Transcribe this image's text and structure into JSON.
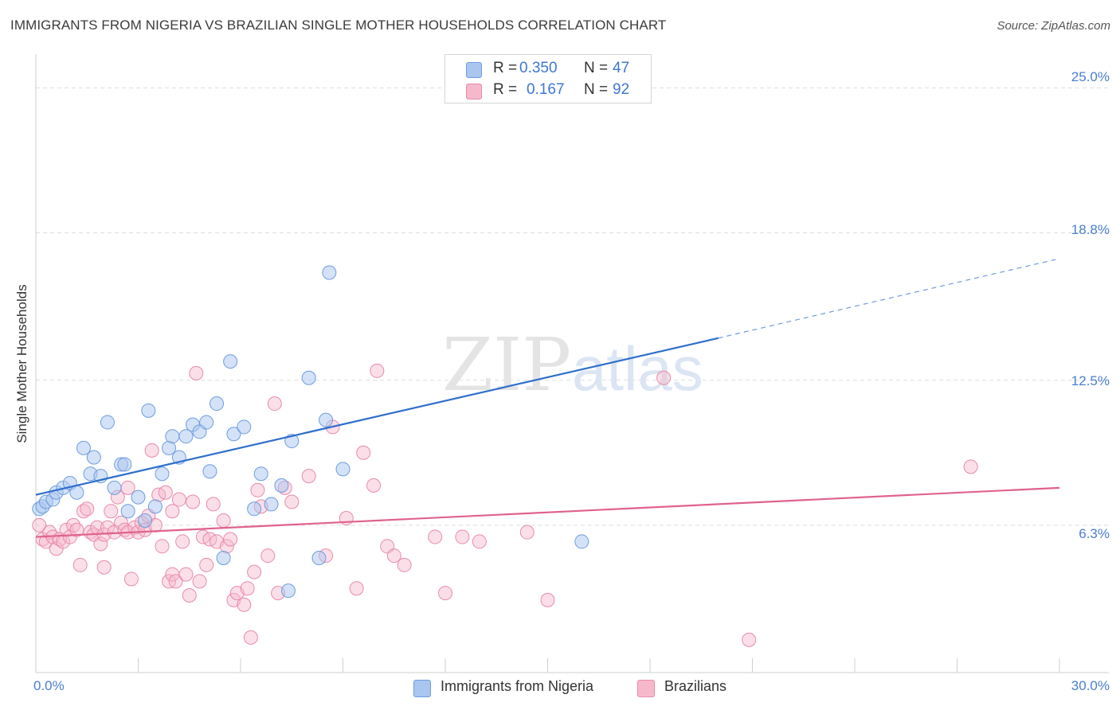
{
  "title": "IMMIGRANTS FROM NIGERIA VS BRAZILIAN SINGLE MOTHER HOUSEHOLDS CORRELATION CHART",
  "source": "Source: ZipAtlas.com",
  "watermark": {
    "zip": "ZIP",
    "atlas": "atlas"
  },
  "colors": {
    "blue_fill": "#a9c6ef",
    "blue_stroke": "#6d9de0",
    "blue_line": "#2f6fcc",
    "pink_fill": "#f6b9cc",
    "pink_stroke": "#e98aaa",
    "pink_line": "#e0628e",
    "tick_label": "#4a7fd0",
    "grid": "#dddddd"
  },
  "legend": {
    "series": [
      {
        "r_label": "R =",
        "r_value": "0.350",
        "n_label": "N =",
        "n_value": "47"
      },
      {
        "r_label": "R =",
        "r_value": "0.167",
        "n_label": "N =",
        "n_value": "92"
      }
    ],
    "bottom": [
      "Immigrants from Nigeria",
      "Brazilians"
    ]
  },
  "chart_data": {
    "type": "scatter",
    "title": "IMMIGRANTS FROM NIGERIA VS BRAZILIAN SINGLE MOTHER HOUSEHOLDS CORRELATION CHART",
    "xlabel": "",
    "ylabel": "Single Mother Households",
    "xlim": [
      0,
      30
    ],
    "ylim": [
      0,
      26.1
    ],
    "x_tick_labels": [
      "0.0%",
      "30.0%"
    ],
    "y_ticks": [
      6.3,
      12.5,
      18.8,
      25.0
    ],
    "y_tick_labels": [
      "6.3%",
      "12.5%",
      "18.8%",
      "25.0%"
    ],
    "grid": true,
    "series": [
      {
        "name": "Immigrants from Nigeria",
        "r": 0.35,
        "n": 47,
        "trend": {
          "x0": 0,
          "y0": 7.6,
          "x1": 20,
          "y1": 14.3,
          "dash_to_x": 30,
          "dash_to_y": 17.7
        },
        "points": [
          [
            0.1,
            7.0
          ],
          [
            0.2,
            7.1
          ],
          [
            0.3,
            7.3
          ],
          [
            0.5,
            7.4
          ],
          [
            0.6,
            7.7
          ],
          [
            0.8,
            7.9
          ],
          [
            1.0,
            8.1
          ],
          [
            1.2,
            7.7
          ],
          [
            1.4,
            9.6
          ],
          [
            1.6,
            8.5
          ],
          [
            1.7,
            9.2
          ],
          [
            1.9,
            8.4
          ],
          [
            2.1,
            10.7
          ],
          [
            2.3,
            7.9
          ],
          [
            2.5,
            8.9
          ],
          [
            2.6,
            8.9
          ],
          [
            2.7,
            6.9
          ],
          [
            3.0,
            7.5
          ],
          [
            3.2,
            6.5
          ],
          [
            3.3,
            11.2
          ],
          [
            3.5,
            7.1
          ],
          [
            3.7,
            8.5
          ],
          [
            3.9,
            9.6
          ],
          [
            4.0,
            10.1
          ],
          [
            4.2,
            9.2
          ],
          [
            4.4,
            10.1
          ],
          [
            4.6,
            10.6
          ],
          [
            4.8,
            10.3
          ],
          [
            5.0,
            10.7
          ],
          [
            5.1,
            8.6
          ],
          [
            5.3,
            11.5
          ],
          [
            5.5,
            4.9
          ],
          [
            5.7,
            13.3
          ],
          [
            5.8,
            10.2
          ],
          [
            6.1,
            10.5
          ],
          [
            6.4,
            7.0
          ],
          [
            6.6,
            8.5
          ],
          [
            6.9,
            7.2
          ],
          [
            7.2,
            8.0
          ],
          [
            7.5,
            9.9
          ],
          [
            8.0,
            12.6
          ],
          [
            8.3,
            4.9
          ],
          [
            8.5,
            10.8
          ],
          [
            8.6,
            17.1
          ],
          [
            9.0,
            8.7
          ],
          [
            16.0,
            5.6
          ],
          [
            7.4,
            3.5
          ]
        ]
      },
      {
        "name": "Brazilians",
        "r": 0.167,
        "n": 92,
        "trend": {
          "x0": 0,
          "y0": 5.8,
          "x1": 30,
          "y1": 7.9
        },
        "points": [
          [
            0.1,
            6.3
          ],
          [
            0.2,
            5.7
          ],
          [
            0.3,
            5.6
          ],
          [
            0.4,
            6.0
          ],
          [
            0.5,
            5.8
          ],
          [
            0.6,
            5.3
          ],
          [
            0.7,
            5.7
          ],
          [
            0.8,
            5.6
          ],
          [
            0.9,
            6.1
          ],
          [
            1.0,
            5.8
          ],
          [
            1.1,
            6.3
          ],
          [
            1.2,
            6.1
          ],
          [
            1.3,
            4.6
          ],
          [
            1.4,
            6.9
          ],
          [
            1.5,
            7.0
          ],
          [
            1.6,
            6.0
          ],
          [
            1.7,
            5.9
          ],
          [
            1.8,
            6.2
          ],
          [
            1.9,
            5.5
          ],
          [
            2.0,
            4.5
          ],
          [
            2.0,
            5.9
          ],
          [
            2.1,
            6.2
          ],
          [
            2.2,
            6.9
          ],
          [
            2.3,
            6.0
          ],
          [
            2.4,
            7.5
          ],
          [
            2.5,
            6.4
          ],
          [
            2.6,
            6.1
          ],
          [
            2.7,
            7.9
          ],
          [
            2.7,
            6.0
          ],
          [
            2.8,
            4.0
          ],
          [
            2.9,
            6.2
          ],
          [
            3.0,
            6.0
          ],
          [
            3.1,
            6.4
          ],
          [
            3.2,
            6.1
          ],
          [
            3.3,
            6.7
          ],
          [
            3.4,
            9.5
          ],
          [
            3.5,
            6.3
          ],
          [
            3.6,
            7.6
          ],
          [
            3.7,
            5.4
          ],
          [
            3.8,
            7.7
          ],
          [
            3.9,
            3.9
          ],
          [
            4.0,
            6.9
          ],
          [
            4.0,
            4.2
          ],
          [
            4.1,
            3.9
          ],
          [
            4.2,
            7.4
          ],
          [
            4.3,
            5.6
          ],
          [
            4.4,
            4.2
          ],
          [
            4.5,
            3.3
          ],
          [
            4.6,
            7.3
          ],
          [
            4.7,
            12.8
          ],
          [
            4.8,
            3.9
          ],
          [
            4.9,
            5.8
          ],
          [
            5.0,
            4.6
          ],
          [
            5.1,
            5.7
          ],
          [
            5.2,
            7.2
          ],
          [
            5.3,
            5.6
          ],
          [
            5.5,
            6.5
          ],
          [
            5.6,
            5.4
          ],
          [
            5.7,
            5.7
          ],
          [
            5.8,
            3.1
          ],
          [
            5.9,
            3.4
          ],
          [
            6.1,
            2.9
          ],
          [
            6.2,
            3.6
          ],
          [
            6.3,
            1.5
          ],
          [
            6.4,
            4.3
          ],
          [
            6.5,
            7.8
          ],
          [
            6.6,
            7.1
          ],
          [
            6.8,
            5.0
          ],
          [
            7.0,
            11.5
          ],
          [
            7.1,
            3.4
          ],
          [
            7.3,
            7.9
          ],
          [
            7.5,
            7.3
          ],
          [
            8.0,
            8.4
          ],
          [
            8.5,
            5.0
          ],
          [
            8.7,
            10.5
          ],
          [
            9.1,
            6.6
          ],
          [
            9.4,
            3.6
          ],
          [
            9.6,
            9.4
          ],
          [
            9.9,
            8.0
          ],
          [
            10.0,
            12.9
          ],
          [
            10.3,
            5.4
          ],
          [
            10.5,
            5.0
          ],
          [
            10.8,
            4.6
          ],
          [
            11.7,
            5.8
          ],
          [
            12.0,
            3.4
          ],
          [
            12.5,
            5.8
          ],
          [
            13.0,
            5.6
          ],
          [
            14.4,
            6.0
          ],
          [
            15.0,
            3.1
          ],
          [
            18.4,
            12.6
          ],
          [
            20.9,
            1.4
          ],
          [
            27.4,
            8.8
          ]
        ]
      }
    ]
  }
}
